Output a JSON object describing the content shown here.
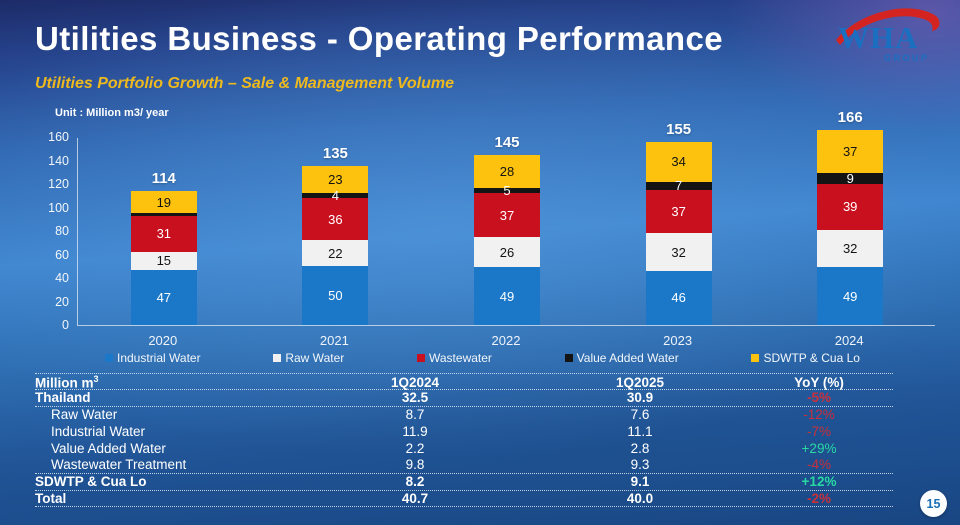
{
  "header": {
    "title": "Utilities Business - Operating Performance",
    "subtitle": "Utilities Portfolio Growth – Sale & Management Volume",
    "subtitle_color": "#edb91e",
    "logo": {
      "name": "WHA",
      "sub": "GROUP",
      "text_color": "#1b6fc0",
      "swoosh_color": "#d42421"
    }
  },
  "chart_data": {
    "type": "bar",
    "stacked": true,
    "unit_label": "Unit : Million m3/ year",
    "categories": [
      "2020",
      "2021",
      "2022",
      "2023",
      "2024"
    ],
    "totals": [
      "114",
      "135",
      "145",
      "155",
      "166"
    ],
    "series": [
      {
        "name": "Industrial Water",
        "color": "#1b78c8",
        "label_color": "#ffffff",
        "values": [
          47,
          50,
          49,
          46,
          49
        ],
        "labels": [
          "47",
          "50",
          "49",
          "46",
          "49"
        ]
      },
      {
        "name": "Raw Water",
        "color": "#f1f1f1",
        "label_color": "#141414",
        "values": [
          15,
          22,
          26,
          32,
          32
        ],
        "labels": [
          "15",
          "22",
          "26",
          "32",
          "32"
        ]
      },
      {
        "name": "Wastewater",
        "color": "#c9101f",
        "label_color": "#ffffff",
        "values": [
          31,
          36,
          37,
          37,
          39
        ],
        "labels": [
          "31",
          "36",
          "37",
          "37",
          "39"
        ]
      },
      {
        "name": "Value Added Water",
        "color": "#141414",
        "label_color": "#ffffff",
        "values": [
          2,
          4,
          5,
          7,
          9
        ],
        "labels": [
          "",
          "4",
          "5",
          "7",
          "9"
        ]
      },
      {
        "name": "SDWTP & Cua Lo",
        "color": "#fcc20d",
        "label_color": "#141414",
        "values": [
          19,
          23,
          28,
          34,
          37
        ],
        "labels": [
          "19",
          "23",
          "28",
          "34",
          "37"
        ]
      }
    ],
    "y_ticks": [
      0,
      20,
      40,
      60,
      80,
      100,
      120,
      140,
      160
    ],
    "ylim": [
      0,
      160
    ],
    "grid": false,
    "legend_position": "bottom"
  },
  "table": {
    "header": {
      "unit_text": "Million m",
      "unit_sup": "3",
      "cols": [
        "1Q2024",
        "1Q2025",
        "YoY (%)"
      ]
    },
    "rows": [
      {
        "label": "Thailand",
        "q1_2024": "32.5",
        "q1_2025": "30.9",
        "yoy": "-5%",
        "trend": "down",
        "bold": true,
        "indent": false,
        "divider": true
      },
      {
        "label": "Raw Water",
        "q1_2024": "8.7",
        "q1_2025": "7.6",
        "yoy": "-12%",
        "trend": "down",
        "bold": false,
        "indent": true,
        "divider": false
      },
      {
        "label": "Industrial Water",
        "q1_2024": "11.9",
        "q1_2025": "11.1",
        "yoy": "-7%",
        "trend": "down",
        "bold": false,
        "indent": true,
        "divider": false
      },
      {
        "label": "Value Added Water",
        "q1_2024": "2.2",
        "q1_2025": "2.8",
        "yoy": "+29%",
        "trend": "up",
        "bold": false,
        "indent": true,
        "divider": false
      },
      {
        "label": "Wastewater Treatment",
        "q1_2024": "9.8",
        "q1_2025": "9.3",
        "yoy": "-4%",
        "trend": "down",
        "bold": false,
        "indent": true,
        "divider": true
      },
      {
        "label": "SDWTP & Cua Lo",
        "q1_2024": "8.2",
        "q1_2025": "9.1",
        "yoy": "+12%",
        "trend": "up",
        "bold": true,
        "indent": false,
        "divider": true
      },
      {
        "label": "Total",
        "q1_2024": "40.7",
        "q1_2025": "40.0",
        "yoy": "-2%",
        "trend": "down",
        "bold": true,
        "indent": false,
        "divider": true
      }
    ]
  },
  "colors": {
    "yoy_down": "#c8303c",
    "yoy_up": "#27d8a3",
    "accent_gold": "#edb91e"
  },
  "footer": {
    "page_number": "15"
  }
}
